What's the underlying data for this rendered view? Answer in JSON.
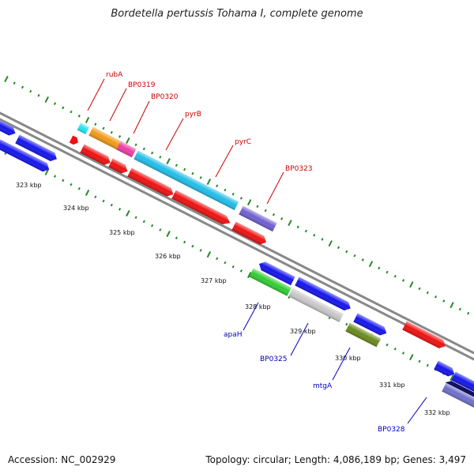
{
  "title": "Bordetella pertussis Tohama I, complete genome",
  "footer": {
    "accession": "Accession: NC_002929",
    "topology": "Topology: circular; Length: 4,086,189 bp; Genes: 3,497"
  },
  "kbp_labels": [
    "323 kbp",
    "324 kbp",
    "325 kbp",
    "326 kbp",
    "327 kbp",
    "328 kbp",
    "329 kbp",
    "330 kbp",
    "331 kbp",
    "332 kbp"
  ],
  "gene_labels_top": [
    "rubA",
    "BP0319",
    "BP0320",
    "pyrB",
    "pyrC",
    "BP0323"
  ],
  "gene_labels_bottom": [
    "apaH",
    "BP0325",
    "mtgA",
    "BP0328"
  ],
  "colors": {
    "forward_label": "#cc0000",
    "reverse_label": "#0000bb",
    "tick": "#228b22",
    "backbone": "#808080"
  }
}
